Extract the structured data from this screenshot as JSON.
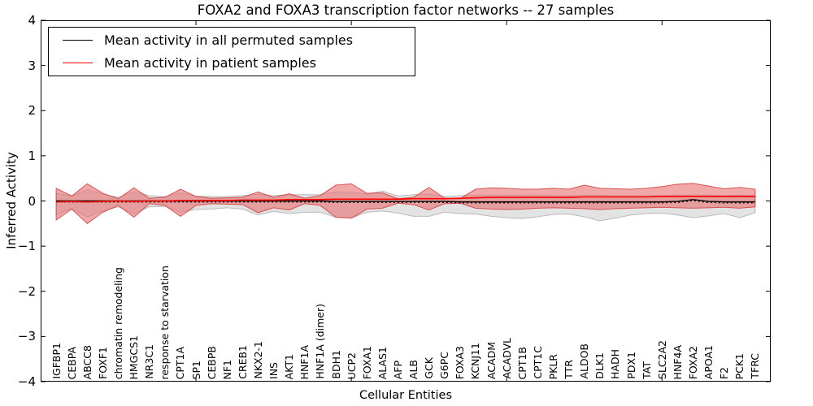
{
  "colors": {
    "permuted_line": "#000000",
    "patient_line": "#ff0000",
    "permuted_band": "#c8c8c8",
    "patient_band": "#e87272",
    "axis": "#000000",
    "background": "#ffffff"
  },
  "chart_data": {
    "type": "area",
    "title": "FOXA2 and FOXA3 transcription factor networks -- 27 samples",
    "xlabel": "Cellular Entities",
    "ylabel": "Inferred Activity",
    "ylim": [
      -4,
      4
    ],
    "yticks": [
      4,
      3,
      2,
      1,
      0,
      -1,
      -2,
      -3,
      -4
    ],
    "xticks_major": [
      10,
      20,
      30,
      40
    ],
    "grid": false,
    "legend_position": "upper-left",
    "categories": [
      "IGFBP1",
      "CEBPA",
      "ABCC8",
      "FOXF1",
      "chromatin remodeling",
      "HMGCS1",
      "NR3C1",
      "response to starvation",
      "CPT1A",
      "SP1",
      "CEBPB",
      "NF1",
      "CREB1",
      "NKX2-1",
      "INS",
      "AKT1",
      "HNF1A",
      "HNF1A (dimer)",
      "BDH1",
      "UCP2",
      "FOXA1",
      "ALAS1",
      "AFP",
      "ALB",
      "GCK",
      "G6PC",
      "FOXA3",
      "KCNJ11",
      "ACADM",
      "ACADVL",
      "CPT1B",
      "CPT1C",
      "PKLR",
      "TTR",
      "ALDOB",
      "DLK1",
      "HADH",
      "PDX1",
      "TAT",
      "SLC2A2",
      "HNF4A",
      "FOXA2",
      "APOA1",
      "F2",
      "PCK1",
      "TFRC"
    ],
    "series": [
      {
        "name": "Mean activity in all permuted samples",
        "color": "#000000",
        "values": [
          0,
          0,
          0,
          0,
          0,
          0,
          0,
          0,
          0,
          0,
          0,
          0,
          0,
          0,
          0,
          0,
          0,
          0,
          -0.01,
          -0.01,
          -0.01,
          -0.01,
          -0.01,
          -0.01,
          -0.01,
          -0.01,
          -0.02,
          -0.02,
          -0.02,
          -0.02,
          -0.02,
          -0.02,
          -0.02,
          -0.02,
          -0.02,
          -0.02,
          -0.02,
          -0.02,
          -0.02,
          -0.02,
          -0.01,
          0.03,
          -0.01,
          -0.02,
          -0.02,
          -0.02
        ]
      },
      {
        "name": "Mean activity in patient samples",
        "color": "#ff0000",
        "values": [
          -0.02,
          -0.01,
          -0.02,
          -0.01,
          0,
          -0.01,
          0,
          0,
          0.01,
          0.01,
          0.01,
          0.01,
          0.02,
          0.02,
          0.02,
          0.03,
          0.03,
          0.03,
          0.04,
          0.04,
          0.04,
          0.04,
          0.04,
          0.05,
          0.05,
          0.05,
          0.06,
          0.07,
          0.08,
          0.08,
          0.08,
          0.08,
          0.08,
          0.08,
          0.09,
          0.09,
          0.09,
          0.09,
          0.09,
          0.1,
          0.1,
          0.1,
          0.1,
          0.1,
          0.1,
          0.1
        ]
      }
    ],
    "bands": [
      {
        "name": "permuted samples std band",
        "color": "#c8c8c8",
        "upper": [
          0.17,
          0.11,
          0.25,
          0.15,
          0.08,
          0.2,
          0.12,
          0.1,
          0.18,
          0.11,
          0.1,
          0.1,
          0.12,
          0.15,
          0.12,
          0.14,
          0.14,
          0.14,
          0.2,
          0.2,
          0.15,
          0.22,
          0.11,
          0.14,
          0.15,
          0.1,
          0.12,
          0.13,
          0.13,
          0.13,
          0.13,
          0.13,
          0.12,
          0.12,
          0.13,
          0.13,
          0.12,
          0.12,
          0.12,
          0.12,
          0.13,
          0.13,
          0.13,
          0.12,
          0.13,
          0.12
        ],
        "lower": [
          -0.31,
          -0.16,
          -0.36,
          -0.22,
          -0.13,
          -0.28,
          -0.13,
          -0.12,
          -0.25,
          -0.19,
          -0.18,
          -0.15,
          -0.18,
          -0.31,
          -0.23,
          -0.28,
          -0.25,
          -0.25,
          -0.36,
          -0.38,
          -0.25,
          -0.22,
          -0.27,
          -0.34,
          -0.34,
          -0.25,
          -0.28,
          -0.29,
          -0.34,
          -0.37,
          -0.39,
          -0.35,
          -0.3,
          -0.29,
          -0.35,
          -0.44,
          -0.38,
          -0.31,
          -0.28,
          -0.27,
          -0.31,
          -0.37,
          -0.33,
          -0.28,
          -0.37,
          -0.26
        ]
      },
      {
        "name": "patient samples std band",
        "color": "#e87272",
        "upper": [
          0.28,
          0.11,
          0.38,
          0.17,
          0.05,
          0.29,
          0.06,
          0.08,
          0.26,
          0.1,
          0.06,
          0.07,
          0.08,
          0.2,
          0.08,
          0.16,
          0.06,
          0.12,
          0.35,
          0.38,
          0.17,
          0.18,
          0.05,
          0.08,
          0.3,
          0.06,
          0.05,
          0.26,
          0.29,
          0.28,
          0.26,
          0.26,
          0.28,
          0.26,
          0.35,
          0.28,
          0.27,
          0.26,
          0.28,
          0.32,
          0.37,
          0.39,
          0.33,
          0.27,
          0.3,
          0.26
        ],
        "lower": [
          -0.42,
          -0.18,
          -0.5,
          -0.25,
          -0.1,
          -0.36,
          -0.06,
          -0.1,
          -0.34,
          -0.1,
          -0.06,
          -0.07,
          -0.08,
          -0.26,
          -0.15,
          -0.2,
          -0.06,
          -0.1,
          -0.36,
          -0.38,
          -0.18,
          -0.16,
          -0.05,
          -0.08,
          -0.2,
          -0.06,
          -0.05,
          -0.16,
          -0.18,
          -0.19,
          -0.18,
          -0.16,
          -0.15,
          -0.16,
          -0.17,
          -0.19,
          -0.17,
          -0.16,
          -0.15,
          -0.14,
          -0.15,
          -0.16,
          -0.15,
          -0.14,
          -0.16,
          -0.13
        ]
      }
    ]
  }
}
